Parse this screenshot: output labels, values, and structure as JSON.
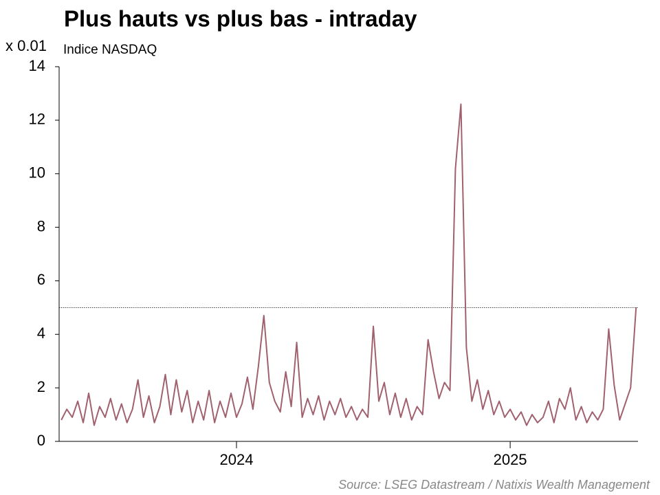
{
  "chart_data": {
    "type": "line",
    "title": "Plus hauts vs plus bas - intraday",
    "subtitle": "Indice NASDAQ",
    "y_unit_label": "x 0.01",
    "source": "Source: LSEG Datastream / Natixis Wealth Management",
    "x": [
      2023.36,
      2023.38,
      2023.4,
      2023.42,
      2023.44,
      2023.46,
      2023.48,
      2023.5,
      2023.52,
      2023.54,
      2023.56,
      2023.58,
      2023.6,
      2023.62,
      2023.64,
      2023.66,
      2023.68,
      2023.7,
      2023.72,
      2023.74,
      2023.76,
      2023.78,
      2023.8,
      2023.82,
      2023.84,
      2023.86,
      2023.88,
      2023.9,
      2023.92,
      2023.94,
      2023.96,
      2023.98,
      2024.0,
      2024.02,
      2024.04,
      2024.06,
      2024.08,
      2024.1,
      2024.12,
      2024.14,
      2024.16,
      2024.18,
      2024.2,
      2024.22,
      2024.24,
      2024.26,
      2024.28,
      2024.3,
      2024.32,
      2024.34,
      2024.36,
      2024.38,
      2024.4,
      2024.42,
      2024.44,
      2024.46,
      2024.48,
      2024.5,
      2024.52,
      2024.54,
      2024.56,
      2024.58,
      2024.6,
      2024.62,
      2024.64,
      2024.66,
      2024.68,
      2024.7,
      2024.72,
      2024.74,
      2024.76,
      2024.78,
      2024.8,
      2024.82,
      2024.84,
      2024.86,
      2024.88,
      2024.9,
      2024.92,
      2024.94,
      2024.96,
      2024.98,
      2025.0,
      2025.02,
      2025.04,
      2025.06,
      2025.08,
      2025.1,
      2025.12,
      2025.14,
      2025.16,
      2025.18,
      2025.2,
      2025.22,
      2025.24,
      2025.26,
      2025.28,
      2025.3,
      2025.32,
      2025.34,
      2025.36,
      2025.38,
      2025.4,
      2025.42,
      2025.44,
      2025.46
    ],
    "series": [
      {
        "color": "#a0606e",
        "values": [
          0.8,
          1.2,
          0.9,
          1.5,
          0.7,
          1.8,
          0.6,
          1.3,
          0.9,
          1.6,
          0.8,
          1.4,
          0.7,
          1.2,
          2.3,
          0.9,
          1.7,
          0.7,
          1.3,
          2.5,
          1.0,
          2.3,
          1.1,
          1.9,
          0.7,
          1.5,
          0.8,
          1.9,
          0.7,
          1.5,
          0.9,
          1.8,
          0.9,
          1.4,
          2.4,
          1.2,
          2.8,
          4.7,
          2.2,
          1.5,
          1.1,
          2.6,
          1.3,
          3.7,
          0.9,
          1.6,
          1.0,
          1.7,
          0.8,
          1.5,
          1.0,
          1.6,
          0.9,
          1.3,
          0.8,
          1.2,
          0.9,
          4.3,
          1.5,
          2.2,
          1.0,
          1.8,
          0.9,
          1.6,
          0.8,
          1.3,
          1.0,
          3.8,
          2.6,
          1.6,
          2.2,
          1.9,
          10.2,
          12.6,
          3.5,
          1.5,
          2.3,
          1.2,
          1.9,
          1.0,
          1.5,
          0.9,
          1.2,
          0.8,
          1.1,
          0.6,
          1.0,
          0.7,
          0.9,
          1.5,
          0.7,
          1.6,
          1.2,
          2.0,
          0.8,
          1.3,
          0.7,
          1.1,
          0.8,
          1.2,
          4.2,
          2.1,
          0.8,
          1.4,
          2.0,
          5.0
        ]
      }
    ],
    "xlim": [
      2023.352,
      2025.467
    ],
    "xticks": [
      2024,
      2025
    ],
    "ylim": [
      0,
      14
    ],
    "yticks": [
      0,
      2,
      4,
      6,
      8,
      10,
      12,
      14
    ],
    "reference_line": 5
  }
}
